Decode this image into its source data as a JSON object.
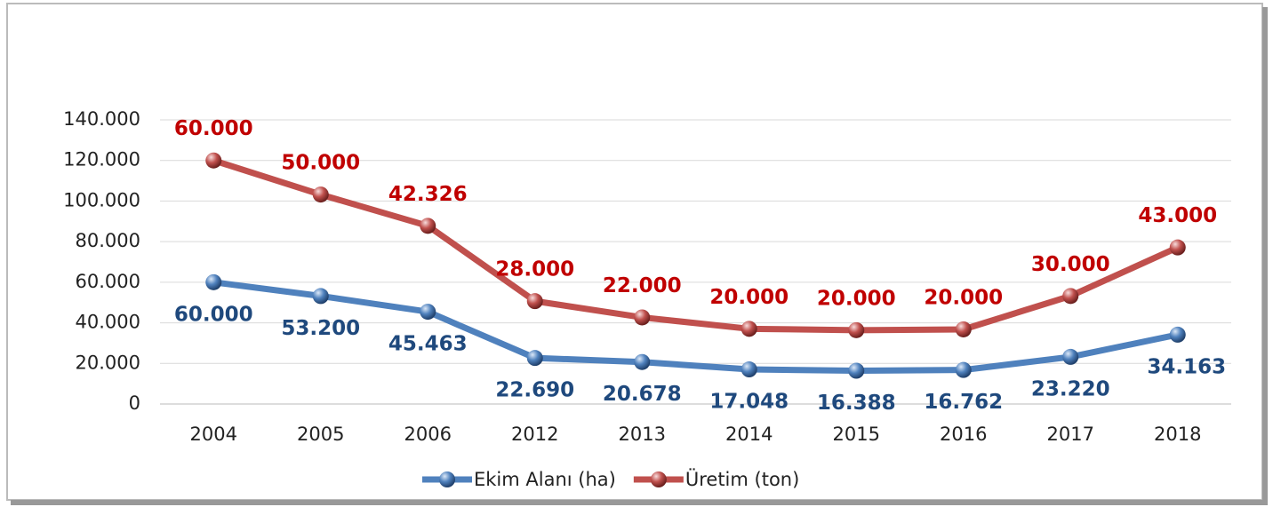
{
  "chart_data": {
    "type": "line",
    "stacked": true,
    "categories": [
      "2004",
      "2005",
      "2006",
      "2012",
      "2013",
      "2014",
      "2015",
      "2016",
      "2017",
      "2018"
    ],
    "series": [
      {
        "name": "Ekim Alanı (ha)",
        "color": "#4f81bd",
        "label_color": "#1f497d",
        "values": [
          60000,
          53200,
          45463,
          22690,
          20678,
          17048,
          16388,
          16762,
          23220,
          34163
        ],
        "value_labels": [
          "60.000",
          "53.200",
          "45.463",
          "22.690",
          "20.678",
          "17.048",
          "16.388",
          "16.762",
          "23.220",
          "34.163"
        ]
      },
      {
        "name": "Üretim (ton)",
        "color": "#c0504d",
        "label_color": "#c00000",
        "values": [
          60000,
          50000,
          42326,
          28000,
          22000,
          20000,
          20000,
          20000,
          30000,
          43000
        ],
        "value_labels": [
          "60.000",
          "50.000",
          "42.326",
          "28.000",
          "22.000",
          "20.000",
          "20.000",
          "20.000",
          "30.000",
          "43.000"
        ]
      }
    ],
    "ylim": [
      0,
      140000
    ],
    "yticks": [
      0,
      {
        "value": 20000,
        "label": "20.000"
      },
      {
        "value": 40000,
        "label": "40.000"
      },
      {
        "value": 60000,
        "label": "60.000"
      },
      {
        "value": 80000,
        "label": "80.000"
      },
      {
        "value": 100000,
        "label": "100.000"
      },
      {
        "value": 120000,
        "label": "120.000"
      },
      {
        "value": 140000,
        "label": "140.000"
      }
    ],
    "grid": true,
    "legend": "bottom"
  }
}
